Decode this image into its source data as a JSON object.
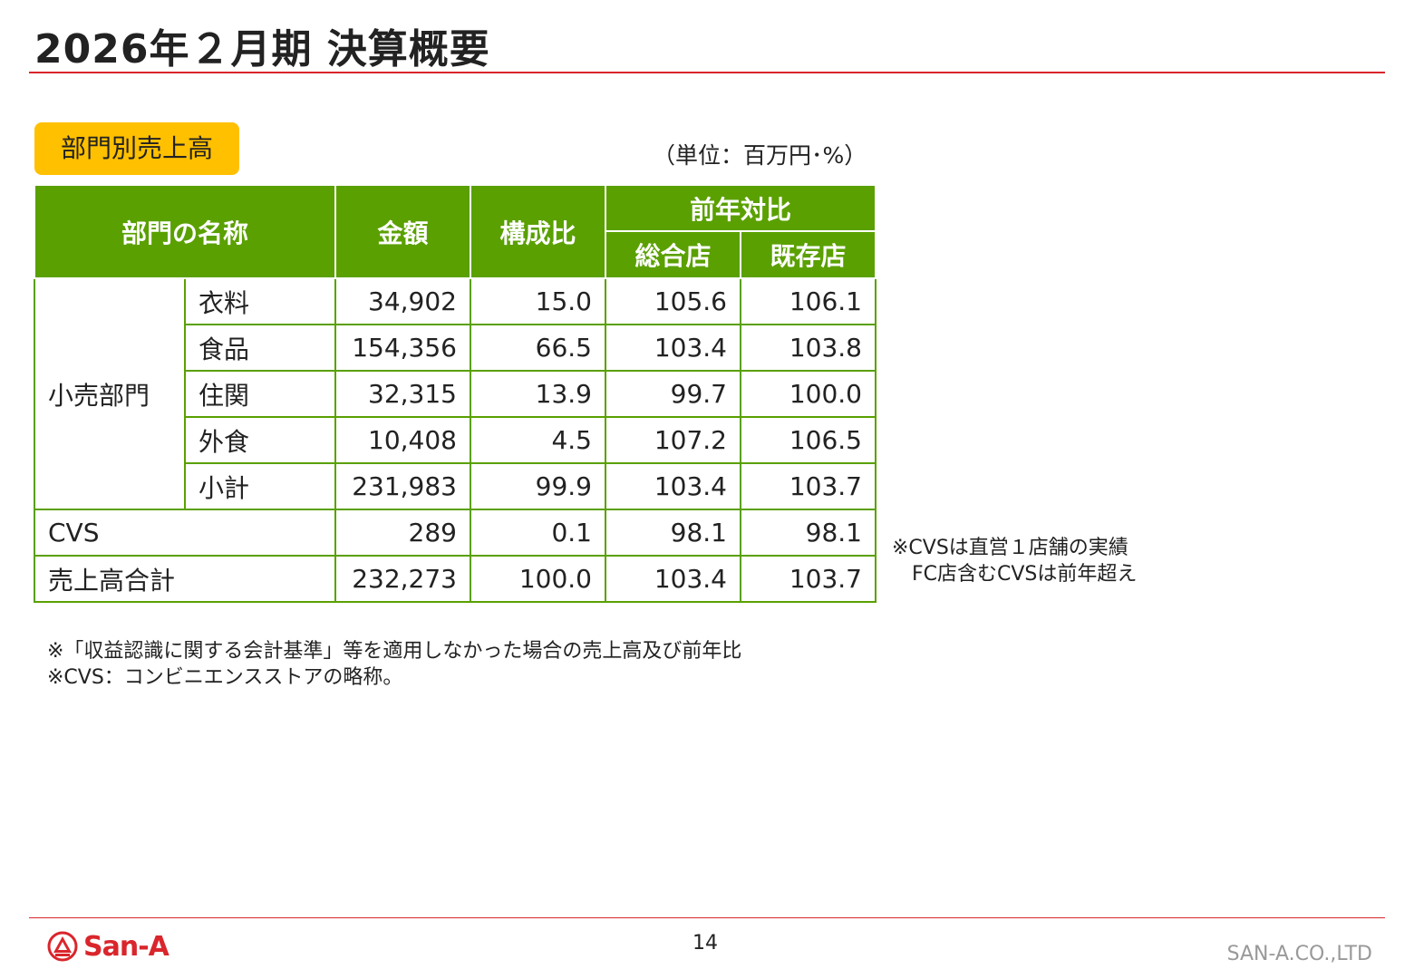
{
  "title": "2026年２月期 決算概要",
  "section_label": "部門別売上高",
  "unit_note": "（単位：百万円･%）",
  "table": {
    "headers": {
      "name": "部門の名称",
      "amount": "金額",
      "ratio": "構成比",
      "yoy": "前年対比",
      "all_stores": "総合店",
      "existing_stores": "既存店"
    },
    "group_label": "小売部門",
    "retail_rows": [
      {
        "name": "衣料",
        "amount": "34,902",
        "ratio": "15.0",
        "all": "105.6",
        "existing": "106.1"
      },
      {
        "name": "食品",
        "amount": "154,356",
        "ratio": "66.5",
        "all": "103.4",
        "existing": "103.8"
      },
      {
        "name": "住関",
        "amount": "32,315",
        "ratio": "13.9",
        "all": "99.7",
        "existing": "100.0"
      },
      {
        "name": "外食",
        "amount": "10,408",
        "ratio": "4.5",
        "all": "107.2",
        "existing": "106.5"
      },
      {
        "name": "小計",
        "amount": "231,983",
        "ratio": "99.9",
        "all": "103.4",
        "existing": "103.7"
      }
    ],
    "cvs_row": {
      "name": "CVS",
      "amount": "289",
      "ratio": "0.1",
      "all": "98.1",
      "existing": "98.1"
    },
    "total_row": {
      "name": "売上高合計",
      "amount": "232,273",
      "ratio": "100.0",
      "all": "103.4",
      "existing": "103.7"
    }
  },
  "side_note": {
    "line1": "※CVSは直営１店舗の実績",
    "line2": "FC店含むCVSは前年超え"
  },
  "footnotes": [
    "※「収益認識に関する会計基準」等を適用しなかった場合の売上高及び前年比",
    "※CVS：コンビニエンスストアの略称。"
  ],
  "footer": {
    "logo_text": "San-A",
    "page_number": "14",
    "company": "SAN-A.CO.,LTD"
  },
  "colors": {
    "accent_red": "#d9262c",
    "table_green": "#5aa000",
    "label_yellow": "#ffc000"
  }
}
